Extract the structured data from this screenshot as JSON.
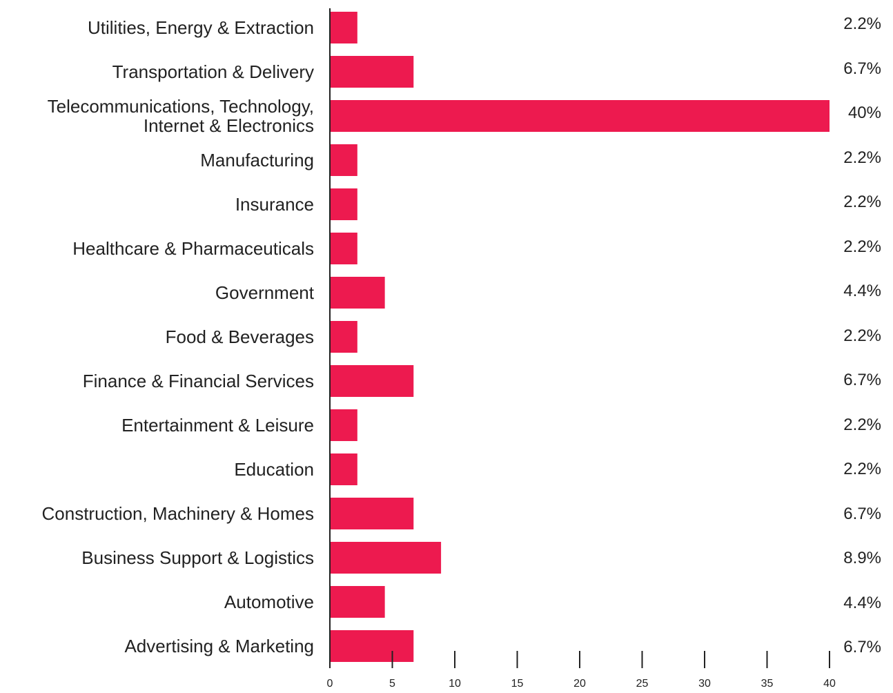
{
  "chart_data": {
    "type": "bar",
    "orientation": "horizontal",
    "categories": [
      "Utilities, Energy & Extraction",
      "Transportation & Delivery",
      "Telecommunications, Technology, Internet & Electronics",
      "Manufacturing",
      "Insurance",
      "Healthcare & Pharmaceuticals",
      "Government",
      "Food & Beverages",
      "Finance & Financial Services",
      "Entertainment & Leisure",
      "Education",
      "Construction, Machinery & Homes",
      "Business Support & Logistics",
      "Automotive",
      "Advertising & Marketing"
    ],
    "values": [
      2.2,
      6.7,
      40,
      2.2,
      2.2,
      2.2,
      4.4,
      2.2,
      6.7,
      2.2,
      2.2,
      6.7,
      8.9,
      4.4,
      6.7
    ],
    "value_labels": [
      "2.2%",
      "6.7%",
      "40%",
      "2.2%",
      "2.2%",
      "2.2%",
      "4.4%",
      "2.2%",
      "6.7%",
      "2.2%",
      "2.2%",
      "6.7%",
      "8.9%",
      "4.4%",
      "6.7%"
    ],
    "color": "#ed1a4f",
    "xlim": [
      0,
      40
    ],
    "xticks": [
      0,
      5,
      10,
      15,
      20,
      25,
      30,
      35,
      40
    ]
  }
}
